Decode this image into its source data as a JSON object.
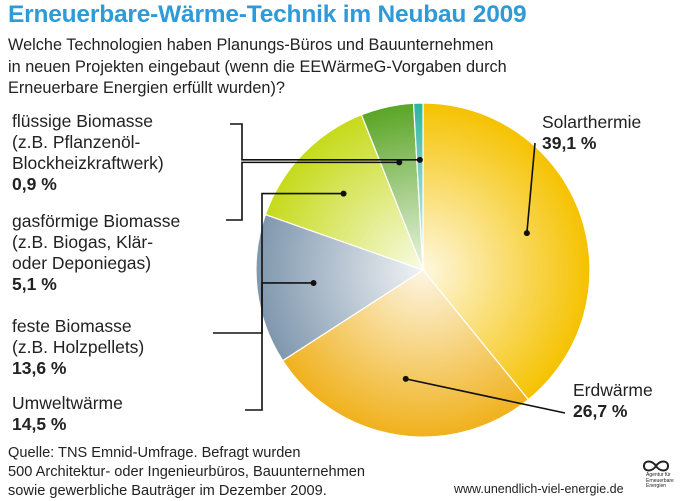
{
  "chart_data": {
    "type": "pie",
    "title": "Erneuerbare-Wärme-Technik im Neubau 2009",
    "subtitle_lines": [
      "Welche Technologien haben Planungs-Büros und Bauunternehmen",
      "in neuen Projekten eingebaut (wenn die EEWärmeG-Vorgaben durch",
      "Erneuerbare Energien erfüllt wurden)?"
    ],
    "slices": [
      {
        "label_lines": [
          "Solarthermie"
        ],
        "value": 39.1,
        "value_text": "39,1 %",
        "color": "#f5c200"
      },
      {
        "label_lines": [
          "Erdwärme"
        ],
        "value": 26.7,
        "value_text": "26,7 %",
        "color": "#f0b11c"
      },
      {
        "label_lines": [
          "Umweltwärme"
        ],
        "value": 14.5,
        "value_text": "14,5 %",
        "color": "#7f97ae"
      },
      {
        "label_lines": [
          "feste Biomasse",
          "(z.B. Holzpellets)"
        ],
        "value": 13.6,
        "value_text": "13,6 %",
        "color": "#c6da1a"
      },
      {
        "label_lines": [
          "gasförmige Biomasse",
          "(z.B. Biogas, Klär-",
          "oder Deponiegas)"
        ],
        "value": 5.1,
        "value_text": "5,1 %",
        "color": "#5aa525"
      },
      {
        "label_lines": [
          "flüssige Biomasse",
          "(z.B. Pflanzenöl-",
          "Blockheizkraftwerk)"
        ],
        "value": 0.9,
        "value_text": "0,9 %",
        "color": "#2bb3a0"
      }
    ],
    "start_direction": "top",
    "order": "clockwise"
  },
  "source_lines": [
    "Quelle: TNS Emnid-Umfrage. Befragt wurden",
    "500 Architektur- oder Ingenieurbüros, Bauunternehmen",
    "sowie gewerbliche Bauträger im Dezember 2009."
  ],
  "footer": {
    "url": "www.unendlich-viel-energie.de",
    "logo_lines": [
      "Agentur für",
      "Erneuerbare",
      "Energien"
    ]
  }
}
